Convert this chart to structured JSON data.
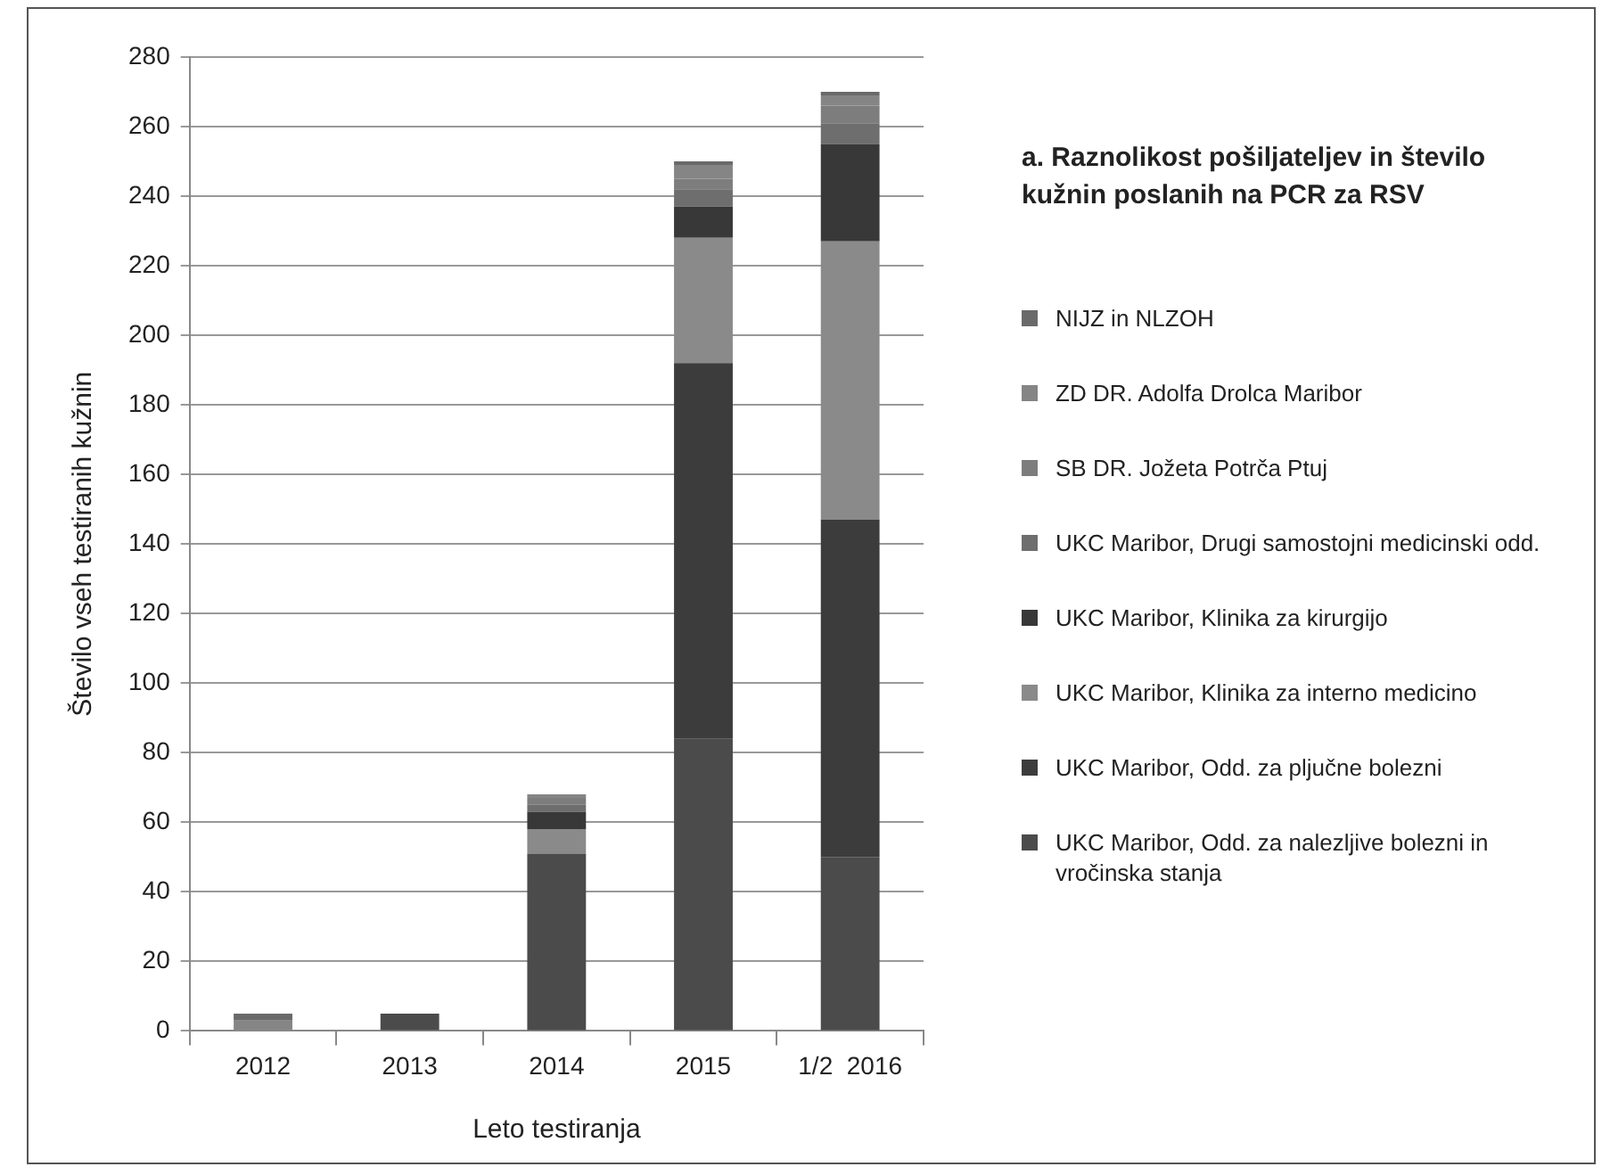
{
  "chart_data": {
    "type": "bar",
    "stacked": true,
    "title": "a. Raznolikost pošiljateljev in število kužnin poslanih na PCR za RSV",
    "xlabel": "Leto testiranja",
    "ylabel": "Število vseh testiranih kužnin",
    "categories": [
      "2012",
      "2013",
      "2014",
      "2015",
      "1/2  2016"
    ],
    "series": [
      {
        "name": "UKC Maribor, Odd. za nalezljive bolezni in vročinska stanja",
        "color": "#4b4b4b",
        "values": [
          null,
          5,
          51,
          84,
          50
        ]
      },
      {
        "name": "UKC Maribor, Odd. za pljučne bolezni",
        "color": "#3c3c3c",
        "values": [
          null,
          null,
          null,
          108,
          97
        ]
      },
      {
        "name": "UKC Maribor, Klinika za interno medicino",
        "color": "#8a8a8a",
        "values": [
          null,
          null,
          7,
          36,
          80
        ]
      },
      {
        "name": "UKC Maribor, Klinika za kirurgijo",
        "color": "#383838",
        "values": [
          null,
          null,
          5,
          9,
          28
        ]
      },
      {
        "name": "UKC Maribor, Drugi samostojni medicinski odd.",
        "color": "#6e6e6e",
        "values": [
          null,
          null,
          2,
          5,
          6
        ]
      },
      {
        "name": "SB DR. Jožeta Potrča Ptuj",
        "color": "#7d7d7d",
        "values": [
          null,
          null,
          2,
          3,
          5
        ]
      },
      {
        "name": "ZD DR. Adolfa Drolca Maribor",
        "color": "#858585",
        "values": [
          3,
          null,
          1,
          4,
          3
        ]
      },
      {
        "name": "NIJZ in NLZOH",
        "color": "#6a6a6a",
        "values": [
          2,
          null,
          null,
          1,
          1
        ]
      }
    ],
    "ylim": [
      0,
      280
    ],
    "yticks": [
      0,
      20,
      40,
      60,
      80,
      100,
      120,
      140,
      160,
      180,
      200,
      220,
      240,
      260,
      280
    ],
    "grid": "y",
    "legend": "right"
  }
}
